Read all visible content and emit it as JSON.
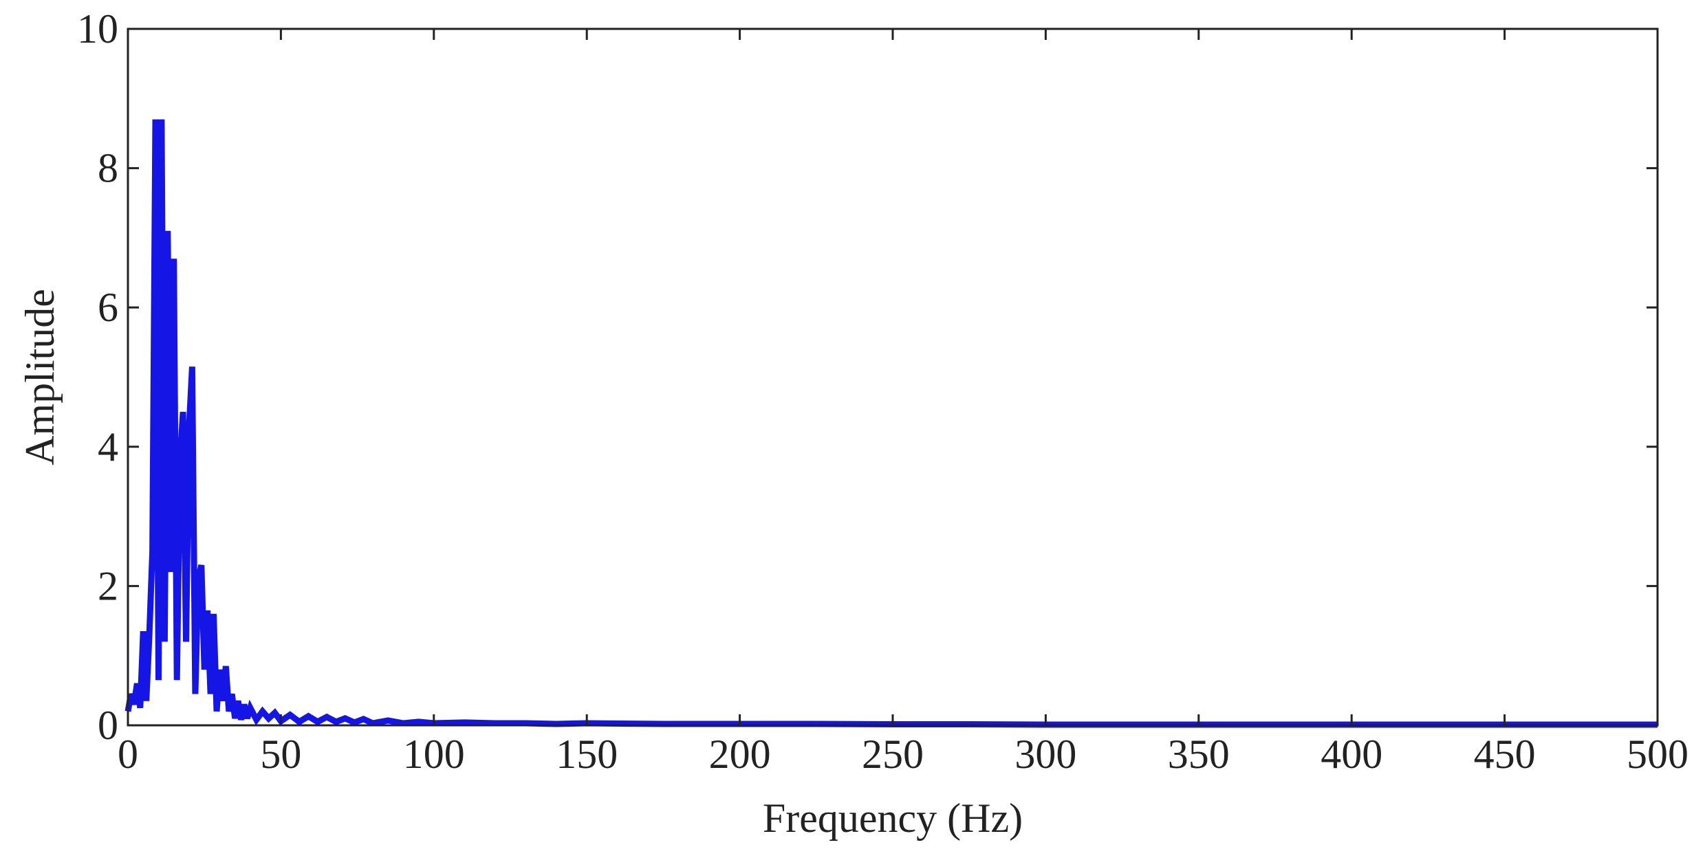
{
  "chart_data": {
    "type": "line",
    "title": "",
    "xlabel": "Frequency (Hz)",
    "ylabel": "Amplitude",
    "xlim": [
      0,
      500
    ],
    "ylim": [
      0,
      10
    ],
    "xticks": [
      0,
      50,
      100,
      150,
      200,
      250,
      300,
      350,
      400,
      450,
      500
    ],
    "yticks": [
      0,
      2,
      4,
      6,
      8,
      10
    ],
    "grid": false,
    "legend": "none",
    "color": "#1515e6",
    "series": [
      {
        "x": [
          0,
          1,
          2,
          3,
          4,
          5,
          6,
          7,
          8,
          9,
          10,
          11,
          12,
          13,
          14,
          15,
          16,
          17,
          18,
          19,
          20,
          21,
          22,
          23,
          24,
          25,
          26,
          27,
          28,
          29,
          30,
          31,
          32,
          33,
          34,
          35,
          36,
          37,
          38,
          39,
          40,
          42,
          44,
          46,
          48,
          50,
          53,
          56,
          59,
          62,
          65,
          68,
          71,
          74,
          77,
          80,
          85,
          90,
          95,
          100,
          110,
          120,
          130,
          140,
          150,
          175,
          200,
          225,
          250,
          275,
          300,
          350,
          400,
          450,
          500
        ],
        "values": [
          0.2,
          0.45,
          0.3,
          0.6,
          0.25,
          1.35,
          0.35,
          1.3,
          2.5,
          8.7,
          0.65,
          8.7,
          1.2,
          7.1,
          2.2,
          6.7,
          0.65,
          3.8,
          4.5,
          1.2,
          4.3,
          5.15,
          0.45,
          2.1,
          2.3,
          0.8,
          1.65,
          0.45,
          1.6,
          0.2,
          0.8,
          0.35,
          0.85,
          0.2,
          0.45,
          0.1,
          0.35,
          0.08,
          0.3,
          0.1,
          0.25,
          0.08,
          0.2,
          0.1,
          0.18,
          0.06,
          0.15,
          0.05,
          0.13,
          0.05,
          0.12,
          0.05,
          0.1,
          0.04,
          0.09,
          0.03,
          0.07,
          0.03,
          0.05,
          0.03,
          0.04,
          0.03,
          0.03,
          0.02,
          0.03,
          0.02,
          0.02,
          0.02,
          0.015,
          0.015,
          0.01,
          0.01,
          0.01,
          0.01,
          0.01
        ]
      }
    ]
  }
}
